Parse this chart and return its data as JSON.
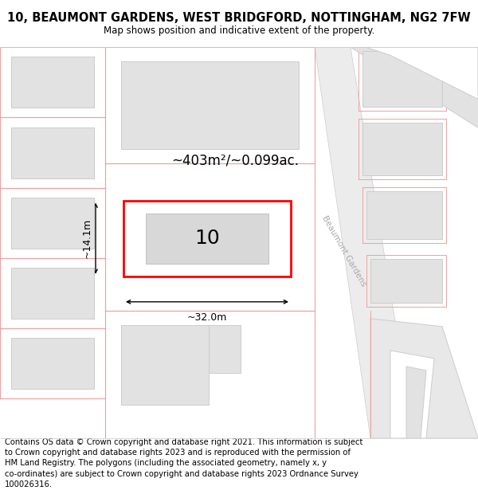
{
  "title": "10, BEAUMONT GARDENS, WEST BRIDGFORD, NOTTINGHAM, NG2 7FW",
  "subtitle": "Map shows position and indicative extent of the property.",
  "footer": "Contains OS data © Crown copyright and database right 2021. This information is subject\nto Crown copyright and database rights 2023 and is reproduced with the permission of\nHM Land Registry. The polygons (including the associated geometry, namely x, y\nco-ordinates) are subject to Crown copyright and database rights 2023 Ordnance Survey\n100026316.",
  "map_bg": "#f7f7f7",
  "highlight_color": "#ff0000",
  "pink_line": "#f0a0a0",
  "area_text": "~403m²/~0.099ac.",
  "label_text": "10",
  "dim_width": "~32.0m",
  "dim_height": "~14.1m",
  "road_label": "Beaumont Gardens",
  "title_fontsize": 10.5,
  "subtitle_fontsize": 8.5,
  "footer_fontsize": 7.2,
  "building_fill": "#e2e2e2",
  "building_edge": "#cccccc",
  "lot_fill": "#f0f0f0",
  "road_fill": "#e8e8e8",
  "road_edge": "#d0d0d0"
}
